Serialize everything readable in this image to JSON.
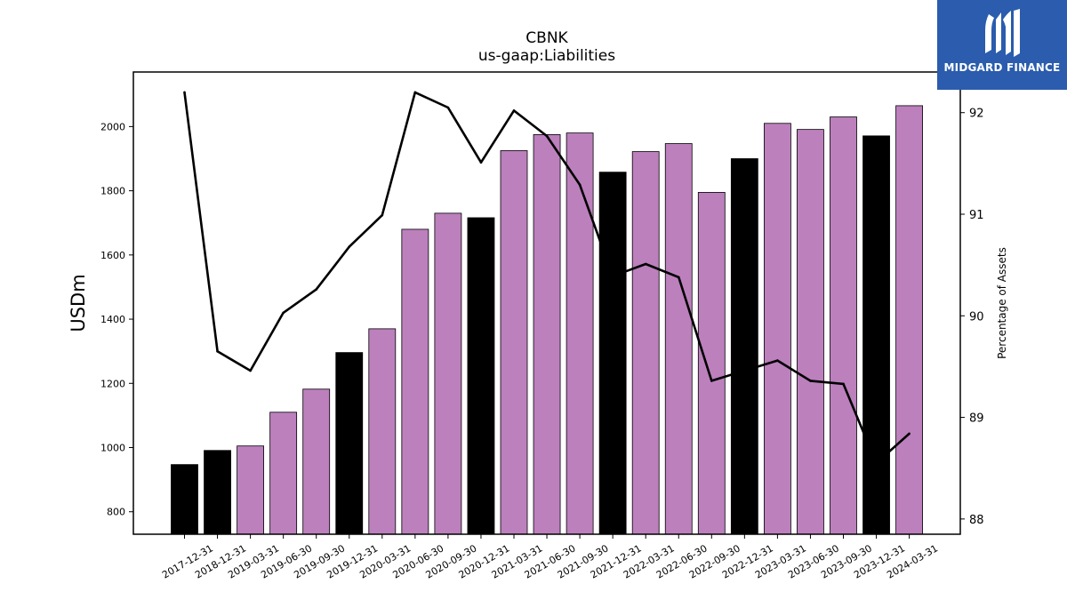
{
  "brand": {
    "name": "MIDGARD FINANCE",
    "bg_color": "#2b5cad",
    "icon": "midgard-logo-icon"
  },
  "chart_data": {
    "type": "bar",
    "title": "CBNK",
    "subtitle": "us-gaap:Liabilities",
    "ylabel": "USDm",
    "y2label": "Percentage of Assets",
    "ylim": [
      730,
      2170
    ],
    "y2lim": [
      87.85,
      92.4
    ],
    "yticks": [
      800,
      1000,
      1200,
      1400,
      1600,
      1800,
      2000
    ],
    "y2ticks": [
      88,
      89,
      90,
      91,
      92
    ],
    "categories": [
      "2017-12-31",
      "2018-12-31",
      "2019-03-31",
      "2019-06-30",
      "2019-09-30",
      "2019-12-31",
      "2020-03-31",
      "2020-06-30",
      "2020-09-30",
      "2020-12-31",
      "2021-03-31",
      "2021-06-30",
      "2021-09-30",
      "2021-12-31",
      "2022-03-31",
      "2022-06-30",
      "2022-09-30",
      "2022-12-31",
      "2023-03-31",
      "2023-06-30",
      "2023-09-30",
      "2023-12-31",
      "2024-03-31"
    ],
    "bar_values": [
      947,
      991,
      1005,
      1110,
      1182,
      1296,
      1370,
      1680,
      1730,
      1716,
      1925,
      1975,
      1980,
      1858,
      1922,
      1947,
      1795,
      1900,
      2010,
      1991,
      2030,
      1971,
      2065
    ],
    "bar_colors": [
      "#000000",
      "#000000",
      "#bc80bd",
      "#bc80bd",
      "#bc80bd",
      "#000000",
      "#bc80bd",
      "#bc80bd",
      "#bc80bd",
      "#000000",
      "#bc80bd",
      "#bc80bd",
      "#bc80bd",
      "#000000",
      "#bc80bd",
      "#bc80bd",
      "#bc80bd",
      "#000000",
      "#bc80bd",
      "#bc80bd",
      "#bc80bd",
      "#000000",
      "#bc80bd"
    ],
    "line_values": [
      92.2,
      89.65,
      89.46,
      90.03,
      90.26,
      90.68,
      90.99,
      92.2,
      92.05,
      91.51,
      92.02,
      91.77,
      91.29,
      90.39,
      90.51,
      90.38,
      89.36,
      89.46,
      89.56,
      89.36,
      89.33,
      88.55,
      88.84
    ],
    "line_color": "#000000",
    "grid": false,
    "legend": "none"
  }
}
